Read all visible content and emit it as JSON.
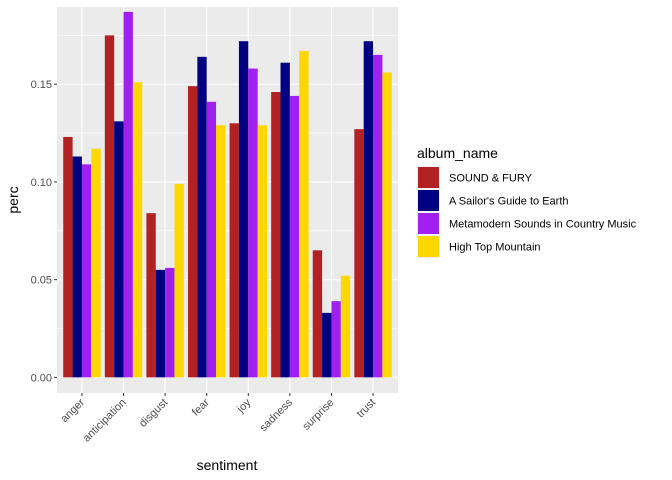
{
  "chart_data": {
    "type": "bar",
    "xlabel": "sentiment",
    "ylabel": "perc",
    "ylim": [
      -0.008,
      0.1895
    ],
    "yticks": [
      0.0,
      0.05,
      0.1,
      0.15
    ],
    "ytick_labels": [
      "0.00",
      "0.05",
      "0.10",
      "0.15"
    ],
    "categories": [
      "anger",
      "anticipation",
      "disgust",
      "fear",
      "joy",
      "sadness",
      "surprise",
      "trust"
    ],
    "legend_title": "album_name",
    "legend_position": "right",
    "grid": true,
    "series": [
      {
        "name": "SOUND & FURY",
        "color": "#B22222",
        "values": [
          0.123,
          0.175,
          0.084,
          0.149,
          0.13,
          0.146,
          0.065,
          0.127
        ]
      },
      {
        "name": "A Sailor's Guide to Earth",
        "color": "#000080",
        "values": [
          0.113,
          0.131,
          0.055,
          0.164,
          0.172,
          0.161,
          0.033,
          0.172
        ]
      },
      {
        "name": "Metamodern Sounds in Country Music",
        "color": "#A020F0",
        "values": [
          0.109,
          0.187,
          0.056,
          0.141,
          0.158,
          0.144,
          0.039,
          0.165
        ]
      },
      {
        "name": "High Top Mountain",
        "color": "#FFD700",
        "values": [
          0.117,
          0.151,
          0.099,
          0.129,
          0.129,
          0.167,
          0.052,
          0.156
        ]
      }
    ]
  }
}
